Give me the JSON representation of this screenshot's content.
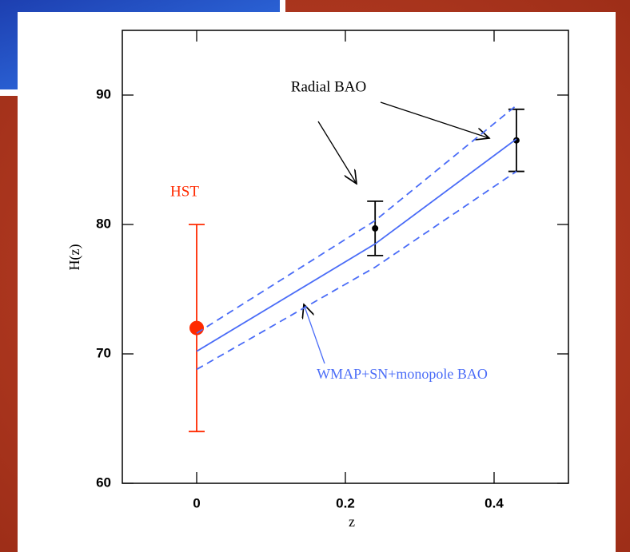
{
  "chart_data": {
    "type": "line",
    "xlabel": "z",
    "ylabel": "H(z)",
    "xlim": [
      -0.1,
      0.5
    ],
    "ylim": [
      60,
      95
    ],
    "xticks": [
      0,
      0.2,
      0.4
    ],
    "yticks": [
      60,
      70,
      80,
      90
    ],
    "grid": false,
    "series": [
      {
        "name": "HST",
        "type": "errorbar",
        "color": "#ff2a00",
        "x": [
          0
        ],
        "values": [
          72
        ],
        "errors": [
          8
        ]
      },
      {
        "name": "Radial BAO",
        "type": "errorbar",
        "color": "#000000",
        "x": [
          0.24,
          0.43
        ],
        "values": [
          79.7,
          86.5
        ],
        "errors": [
          2.1,
          2.4
        ]
      },
      {
        "name": "WMAP+SN+monopole BAO",
        "type": "line",
        "color": "#4a6cf7",
        "dashed": false,
        "x": [
          0,
          0.24,
          0.43
        ],
        "values": [
          70.2,
          78.5,
          86.6
        ]
      },
      {
        "type": "line",
        "color": "#4a6cf7",
        "dashed": true,
        "x": [
          0,
          0.24,
          0.43
        ],
        "values": [
          71.6,
          80.3,
          89.2
        ]
      },
      {
        "type": "line",
        "color": "#4a6cf7",
        "dashed": true,
        "x": [
          0,
          0.24,
          0.43
        ],
        "values": [
          68.8,
          76.7,
          84.1
        ]
      }
    ]
  }
}
